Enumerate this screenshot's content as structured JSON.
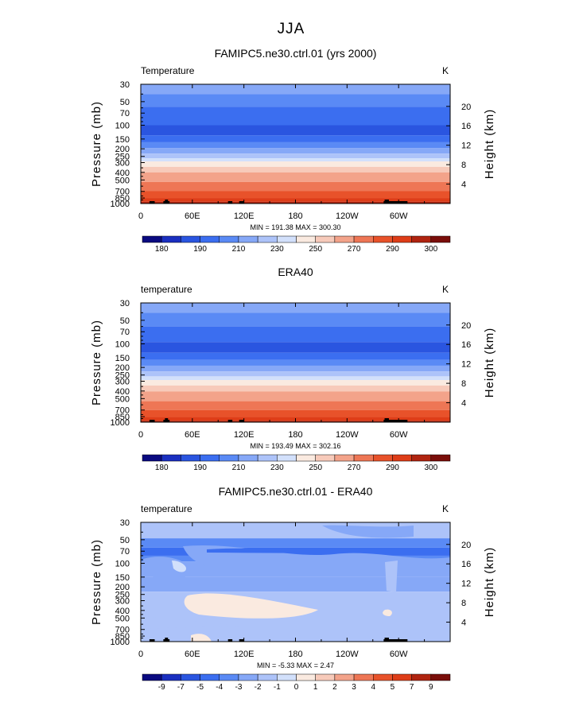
{
  "suptitle": "JJA",
  "chart_data": [
    {
      "type": "heatmap",
      "title": "FAMIPC5.ne30.ctrl.01 (yrs 2000)",
      "left_label": "Temperature",
      "units": "K",
      "ylabel": "Pressure (mb)",
      "ylabel_right": "Height (km)",
      "y_scale": "log",
      "y_ticks": [
        "30",
        "50",
        "70",
        "100",
        "150",
        "200",
        "250",
        "300",
        "400",
        "500",
        "700",
        "850",
        "1000"
      ],
      "y_right_ticks": [
        "20",
        "16",
        "12",
        "8",
        "4"
      ],
      "x_ticks": [
        "0",
        "60E",
        "120E",
        "180",
        "120W",
        "60W"
      ],
      "minmax_text": "MIN = 191.38   MAX = 300.30",
      "colorbar_labels": [
        "180",
        "190",
        "210",
        "230",
        "250",
        "270",
        "290",
        "300"
      ],
      "colors": [
        "#0a0a80",
        "#1a2fc0",
        "#2a55e0",
        "#3b6ef0",
        "#5a8af5",
        "#86a8f7",
        "#adc3f9",
        "#d2e0fb",
        "#faeae0",
        "#f7caba",
        "#f3a38a",
        "#ee7655",
        "#e8522a",
        "#de3d18",
        "#b02410",
        "#7a0e0a"
      ],
      "levels": [
        {
          "p": 30,
          "c": 5
        },
        {
          "p": 40,
          "c": 4
        },
        {
          "p": 58,
          "c": 3
        },
        {
          "p": 100,
          "c": 2
        },
        {
          "p": 135,
          "c": 3
        },
        {
          "p": 165,
          "c": 4
        },
        {
          "p": 195,
          "c": 5
        },
        {
          "p": 230,
          "c": 6
        },
        {
          "p": 265,
          "c": 7
        },
        {
          "p": 290,
          "c": 8
        },
        {
          "p": 340,
          "c": 9
        },
        {
          "p": 400,
          "c": 10
        },
        {
          "p": 530,
          "c": 11
        },
        {
          "p": 690,
          "c": 12
        },
        {
          "p": 850,
          "c": 13
        },
        {
          "p": 950,
          "c": 14
        }
      ],
      "grid": false
    },
    {
      "type": "heatmap",
      "title": "ERA40",
      "left_label": "temperature",
      "units": "K",
      "ylabel": "Pressure (mb)",
      "ylabel_right": "Height (km)",
      "y_scale": "log",
      "y_ticks": [
        "30",
        "50",
        "70",
        "100",
        "150",
        "200",
        "250",
        "300",
        "400",
        "500",
        "700",
        "850",
        "1000"
      ],
      "y_right_ticks": [
        "20",
        "16",
        "12",
        "8",
        "4"
      ],
      "x_ticks": [
        "0",
        "60E",
        "120E",
        "180",
        "120W",
        "60W"
      ],
      "minmax_text": "MIN = 193.49   MAX = 302.16",
      "colorbar_labels": [
        "180",
        "190",
        "210",
        "230",
        "250",
        "270",
        "290",
        "300"
      ],
      "colors": [
        "#0a0a80",
        "#1a2fc0",
        "#2a55e0",
        "#3b6ef0",
        "#5a8af5",
        "#86a8f7",
        "#adc3f9",
        "#d2e0fb",
        "#faeae0",
        "#f7caba",
        "#f3a38a",
        "#ee7655",
        "#e8522a",
        "#de3d18",
        "#b02410",
        "#7a0e0a"
      ],
      "levels": [
        {
          "p": 30,
          "c": 5
        },
        {
          "p": 40,
          "c": 4
        },
        {
          "p": 60,
          "c": 3
        },
        {
          "p": 95,
          "c": 2
        },
        {
          "p": 130,
          "c": 3
        },
        {
          "p": 160,
          "c": 4
        },
        {
          "p": 190,
          "c": 5
        },
        {
          "p": 225,
          "c": 6
        },
        {
          "p": 260,
          "c": 7
        },
        {
          "p": 290,
          "c": 8
        },
        {
          "p": 340,
          "c": 9
        },
        {
          "p": 405,
          "c": 10
        },
        {
          "p": 540,
          "c": 11
        },
        {
          "p": 700,
          "c": 12
        },
        {
          "p": 860,
          "c": 13
        },
        {
          "p": 960,
          "c": 14
        }
      ],
      "grid": false
    },
    {
      "type": "heatmap",
      "title": "FAMIPC5.ne30.ctrl.01 - ERA40",
      "left_label": "temperature",
      "units": "K",
      "ylabel": "Pressure (mb)",
      "ylabel_right": "Height (km)",
      "y_scale": "log",
      "y_ticks": [
        "30",
        "50",
        "70",
        "100",
        "150",
        "200",
        "250",
        "300",
        "400",
        "500",
        "700",
        "850",
        "1000"
      ],
      "y_right_ticks": [
        "20",
        "16",
        "12",
        "8",
        "4"
      ],
      "x_ticks": [
        "0",
        "60E",
        "120E",
        "180",
        "120W",
        "60W"
      ],
      "minmax_text": "MIN =   -5.33   MAX =    2.47",
      "colorbar_labels": [
        "-9",
        "-7",
        "-5",
        "-4",
        "-3",
        "-2",
        "-1",
        "0",
        "1",
        "2",
        "3",
        "4",
        "5",
        "7",
        "9"
      ],
      "colors": [
        "#0a0a80",
        "#1a2fc0",
        "#2a55e0",
        "#3b6ef0",
        "#5a8af5",
        "#86a8f7",
        "#adc3f9",
        "#d2e0fb",
        "#faeae0",
        "#f7caba",
        "#f3a38a",
        "#ee7655",
        "#e8522a",
        "#de3d18",
        "#b02410",
        "#7a0e0a"
      ],
      "levels": [
        {
          "p": 30,
          "c": 6
        },
        {
          "p": 48,
          "c": 4
        },
        {
          "p": 63,
          "c": 3
        },
        {
          "p": 80,
          "c": 4
        },
        {
          "p": 95,
          "c": 5
        },
        {
          "p": 150,
          "c": 5
        },
        {
          "p": 230,
          "c": 6
        },
        {
          "p": 1000,
          "c": 7
        }
      ],
      "grid": false
    }
  ]
}
